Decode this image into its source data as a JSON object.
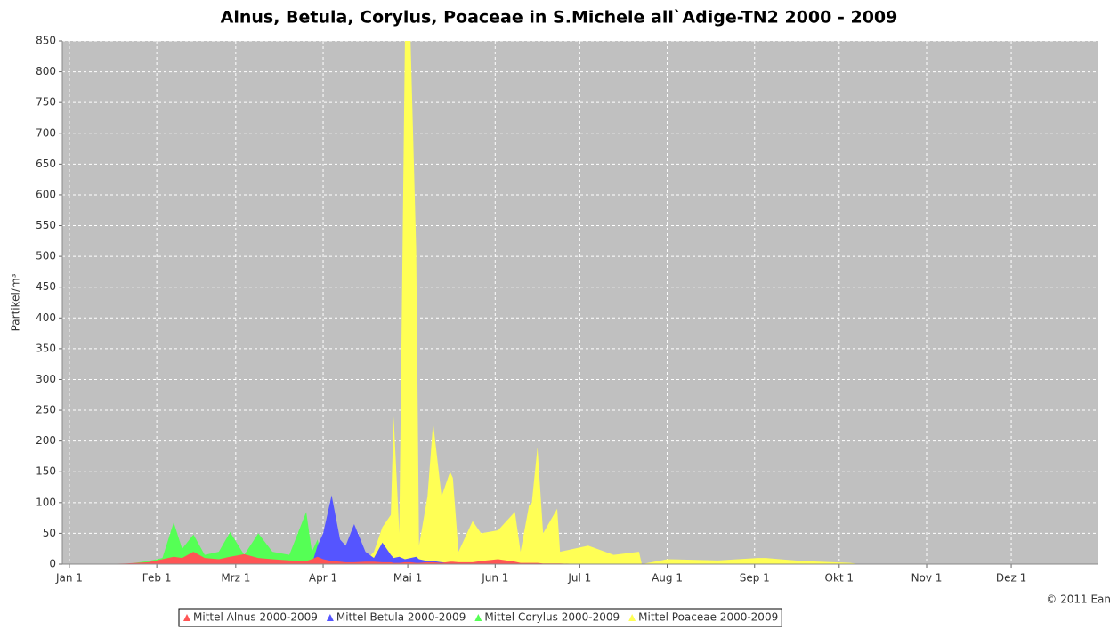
{
  "chart_data": {
    "type": "area",
    "title": "Alnus, Betula, Corylus, Poaceae in S.Michele all`Adige-TN2 2000 - 2009",
    "y_label": "Partikel/m³",
    "annotation": "© 2011 Ean",
    "x": [
      0,
      10,
      20,
      28,
      33,
      37,
      40,
      44,
      48,
      53,
      57,
      62,
      67,
      72,
      78,
      84,
      86,
      88,
      90,
      93,
      96,
      98,
      101,
      105,
      108,
      111,
      114,
      115,
      117,
      119,
      121,
      123,
      124,
      127,
      129,
      132,
      135,
      136,
      138,
      143,
      146,
      152,
      158,
      160,
      163,
      164,
      166,
      168,
      173,
      174,
      184,
      193,
      202,
      203,
      212,
      230,
      244,
      247,
      260,
      277,
      280,
      364
    ],
    "xlim": [
      -2.5,
      364.6
    ],
    "xticks": [
      {
        "value": 0,
        "label": "Jan 1"
      },
      {
        "value": 31,
        "label": "Feb 1"
      },
      {
        "value": 59,
        "label": "Mrz 1"
      },
      {
        "value": 90,
        "label": "Apr 1"
      },
      {
        "value": 120,
        "label": "Mai 1"
      },
      {
        "value": 151,
        "label": "Jun 1"
      },
      {
        "value": 181,
        "label": "Jul 1"
      },
      {
        "value": 212,
        "label": "Aug 1"
      },
      {
        "value": 243,
        "label": "Sep 1"
      },
      {
        "value": 273,
        "label": "Okt 1"
      },
      {
        "value": 304,
        "label": "Nov 1"
      },
      {
        "value": 334,
        "label": "Dez 1"
      }
    ],
    "ylim": [
      0,
      850
    ],
    "yticks": [
      0,
      50,
      100,
      150,
      200,
      250,
      300,
      350,
      400,
      450,
      500,
      550,
      600,
      650,
      700,
      750,
      800,
      850
    ],
    "grid": true,
    "legend": "bottom",
    "series": [
      {
        "name": "Mittel Alnus 2000-2009",
        "color": "#ff5555",
        "values": [
          0,
          0,
          1,
          3,
          8,
          12,
          10,
          20,
          10,
          8,
          12,
          16,
          10,
          8,
          6,
          5,
          8,
          12,
          8,
          5,
          4,
          3,
          3,
          4,
          4,
          3,
          3,
          2,
          2,
          3,
          3,
          2,
          2,
          3,
          3,
          2,
          4,
          4,
          3,
          3,
          5,
          8,
          4,
          2,
          2,
          2,
          2,
          1,
          1,
          1,
          0,
          0,
          0,
          0,
          0,
          0,
          0,
          0,
          0,
          0,
          0,
          0
        ]
      },
      {
        "name": "Mittel Betula 2000-2009",
        "color": "#5555ff",
        "values": [
          0,
          0,
          0,
          0,
          0,
          0,
          0,
          0,
          0,
          0,
          0,
          0,
          0,
          0,
          0,
          0,
          0,
          30,
          50,
          112,
          40,
          30,
          65,
          20,
          10,
          35,
          15,
          10,
          12,
          8,
          10,
          12,
          8,
          5,
          5,
          3,
          2,
          0,
          0,
          0,
          0,
          0,
          0,
          0,
          0,
          0,
          0,
          0,
          0,
          0,
          0,
          0,
          0,
          0,
          0,
          0,
          0,
          0,
          0,
          0,
          0,
          0
        ]
      },
      {
        "name": "Mittel Corylus 2000-2009",
        "color": "#55ff55",
        "values": [
          0,
          0,
          0,
          5,
          10,
          68,
          25,
          48,
          15,
          20,
          52,
          15,
          50,
          20,
          15,
          85,
          20,
          40,
          5,
          0,
          0,
          0,
          0,
          0,
          0,
          0,
          0,
          0,
          0,
          0,
          0,
          0,
          0,
          0,
          0,
          0,
          0,
          0,
          0,
          0,
          0,
          0,
          0,
          0,
          0,
          0,
          0,
          0,
          0,
          0,
          0,
          0,
          0,
          0,
          0,
          0,
          0,
          0,
          0,
          0,
          0,
          0
        ]
      },
      {
        "name": "Mittel Poaceae 2000-2009",
        "color": "#ffff55",
        "values": [
          0,
          0,
          0,
          0,
          0,
          0,
          0,
          0,
          0,
          0,
          0,
          0,
          0,
          0,
          0,
          0,
          0,
          0,
          0,
          0,
          0,
          0,
          0,
          5,
          20,
          60,
          80,
          240,
          50,
          850,
          850,
          510,
          30,
          110,
          230,
          110,
          150,
          140,
          20,
          70,
          50,
          55,
          85,
          20,
          95,
          100,
          190,
          50,
          90,
          20,
          30,
          15,
          20,
          0,
          8,
          6,
          10,
          10,
          5,
          2,
          0,
          0
        ]
      }
    ]
  }
}
